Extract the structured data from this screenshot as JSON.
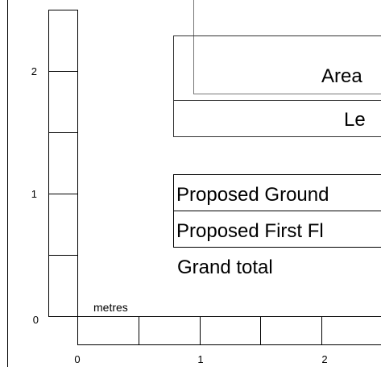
{
  "scale": {
    "unit_label": "metres",
    "vertical_ticks": [
      "0",
      "1",
      "2"
    ],
    "horizontal_ticks": [
      "0",
      "1",
      "2"
    ]
  },
  "table": {
    "header_area": "Area",
    "header_level": "Le",
    "rows": [
      "Proposed Ground",
      "Proposed First Fl"
    ],
    "total_label": "Grand total"
  }
}
